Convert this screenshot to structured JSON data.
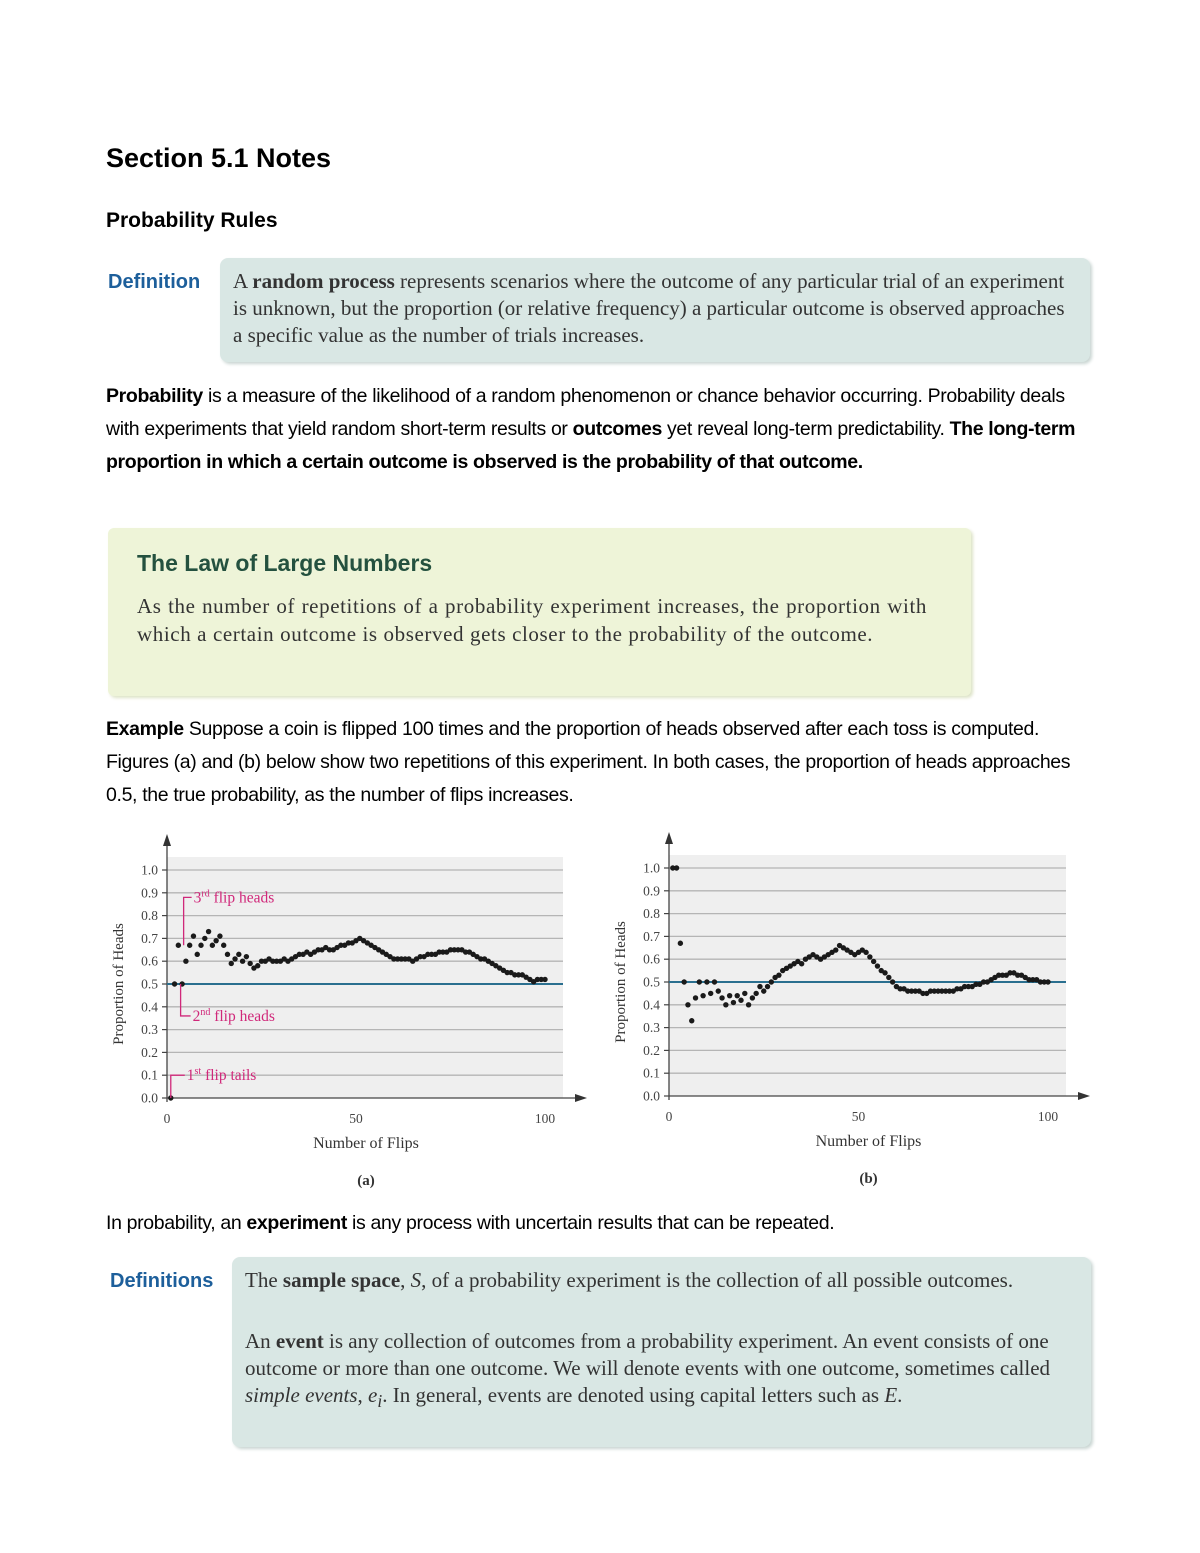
{
  "title": "Section 5.1 Notes",
  "subtitle": "Probability Rules",
  "definition_box": {
    "label": "Definition",
    "pre": "A ",
    "term": "random process",
    "post": " represents scenarios where the outcome of any particular trial of an experiment is unknown, but the proportion (or relative frequency) a particular outcome is observed approaches a specific value as the number of trials increases."
  },
  "probability_paragraph": {
    "term": "Probability",
    "t1": " is a measure of the likelihood of a random phenomenon or chance behavior occurring. Probability deals with experiments that yield random short-term results or ",
    "term2": "outcomes",
    "t2": " yet reveal long-term predictability. ",
    "bold_end": "The long-term proportion in which a certain outcome is observed is the probability of that outcome."
  },
  "law_box": {
    "title": "The Law of Large Numbers",
    "text": "As the number of repetitions of a probability experiment increases, the proportion with which a certain outcome is observed gets closer to the probability of the outcome."
  },
  "example": {
    "term": "Example",
    "text": " Suppose a coin is flipped 100 times and the proportion of heads observed after each toss is computed. Figures (a) and (b) below show two repetitions of this experiment. In both cases, the proportion of heads approaches 0.5, the true probability, as the number of flips increases."
  },
  "chart_data": [
    {
      "type": "scatter",
      "caption": "(a)",
      "xlabel": "Number of Flips",
      "ylabel": "Proportion of Heads",
      "xlim": [
        0,
        100
      ],
      "ylim": [
        0,
        1
      ],
      "xticks": [
        "0",
        "50",
        "100"
      ],
      "yticks": [
        "0.0",
        "0.1",
        "0.2",
        "0.3",
        "0.4",
        "0.5",
        "0.6",
        "0.7",
        "0.8",
        "0.9",
        "1.0"
      ],
      "grid": true,
      "reference_line": 0.5,
      "annotations": [
        {
          "text": "1st flip tails",
          "sup": "st",
          "num": "1",
          "rest": " flip tails",
          "x": 1,
          "y": 0
        },
        {
          "num": "2",
          "sup": "nd",
          "rest": " flip heads",
          "x": 2,
          "y": 0.5
        },
        {
          "num": "3",
          "sup": "rd",
          "rest": " flip heads",
          "x": 3,
          "y": 0.67
        }
      ],
      "colors": {
        "points": "#1a1a1a",
        "reference": "#2a6f8f",
        "annotation": "#d0287a",
        "background": "#efefef"
      },
      "x_start": 1,
      "values": [
        0,
        0.5,
        0.67,
        0.5,
        0.6,
        0.67,
        0.71,
        0.63,
        0.67,
        0.7,
        0.73,
        0.67,
        0.69,
        0.71,
        0.67,
        0.63,
        0.59,
        0.61,
        0.63,
        0.6,
        0.62,
        0.59,
        0.57,
        0.58,
        0.6,
        0.6,
        0.61,
        0.6,
        0.6,
        0.6,
        0.61,
        0.6,
        0.61,
        0.62,
        0.63,
        0.63,
        0.64,
        0.63,
        0.64,
        0.65,
        0.65,
        0.66,
        0.65,
        0.65,
        0.66,
        0.67,
        0.67,
        0.68,
        0.68,
        0.69,
        0.7,
        0.69,
        0.68,
        0.67,
        0.66,
        0.65,
        0.64,
        0.63,
        0.62,
        0.61,
        0.61,
        0.61,
        0.61,
        0.61,
        0.6,
        0.61,
        0.62,
        0.62,
        0.63,
        0.63,
        0.63,
        0.64,
        0.64,
        0.64,
        0.65,
        0.65,
        0.65,
        0.65,
        0.64,
        0.64,
        0.63,
        0.62,
        0.61,
        0.61,
        0.6,
        0.59,
        0.58,
        0.57,
        0.56,
        0.55,
        0.55,
        0.54,
        0.54,
        0.54,
        0.53,
        0.52,
        0.51,
        0.52,
        0.52,
        0.52
      ]
    },
    {
      "type": "scatter",
      "caption": "(b)",
      "xlabel": "Number of Flips",
      "ylabel": "Proportion of Heads",
      "xlim": [
        0,
        100
      ],
      "ylim": [
        0,
        1
      ],
      "xticks": [
        "0",
        "50",
        "100"
      ],
      "yticks": [
        "0.0",
        "0.1",
        "0.2",
        "0.3",
        "0.4",
        "0.5",
        "0.6",
        "0.7",
        "0.8",
        "0.9",
        "1.0"
      ],
      "grid": true,
      "reference_line": 0.5,
      "colors": {
        "points": "#1a1a1a",
        "reference": "#2a6f8f",
        "background": "#efefef"
      },
      "x_start": 1,
      "values": [
        1,
        1,
        0.67,
        0.5,
        0.4,
        0.33,
        0.43,
        0.5,
        0.44,
        0.5,
        0.45,
        0.5,
        0.46,
        0.43,
        0.4,
        0.44,
        0.41,
        0.44,
        0.42,
        0.45,
        0.4,
        0.43,
        0.45,
        0.48,
        0.46,
        0.48,
        0.5,
        0.52,
        0.53,
        0.55,
        0.56,
        0.57,
        0.58,
        0.59,
        0.58,
        0.6,
        0.61,
        0.62,
        0.61,
        0.6,
        0.61,
        0.62,
        0.63,
        0.64,
        0.66,
        0.65,
        0.64,
        0.63,
        0.62,
        0.63,
        0.64,
        0.63,
        0.61,
        0.59,
        0.57,
        0.55,
        0.54,
        0.52,
        0.5,
        0.48,
        0.47,
        0.47,
        0.46,
        0.46,
        0.46,
        0.46,
        0.45,
        0.45,
        0.46,
        0.46,
        0.46,
        0.46,
        0.46,
        0.46,
        0.46,
        0.47,
        0.47,
        0.48,
        0.48,
        0.48,
        0.49,
        0.49,
        0.5,
        0.5,
        0.51,
        0.52,
        0.53,
        0.53,
        0.53,
        0.54,
        0.54,
        0.53,
        0.53,
        0.52,
        0.51,
        0.51,
        0.51,
        0.5,
        0.5,
        0.5
      ]
    }
  ],
  "experiment_paragraph": {
    "t1": "In probability, an ",
    "term": "experiment",
    "t2": " is any process with uncertain results that can be repeated."
  },
  "definitions_box": {
    "label": "Definitions",
    "p1_pre": "The ",
    "p1_term": "sample space",
    "p1_mid": ", ",
    "p1_S": "S",
    "p1_post": ", of a probability experiment is the collection of all possible outcomes.",
    "p2_pre": "An ",
    "p2_term": "event",
    "p2_mid": " is any collection of outcomes from a probability experiment. An event consists of one outcome or more than one outcome. We will denote events with one outcome, sometimes called ",
    "p2_simple": "simple events",
    "p2_comma": ", ",
    "p2_e": "e",
    "p2_i": "i",
    "p2_post": ". In general, events are denoted using capital letters such as ",
    "p2_E": "E",
    "p2_end": "."
  }
}
